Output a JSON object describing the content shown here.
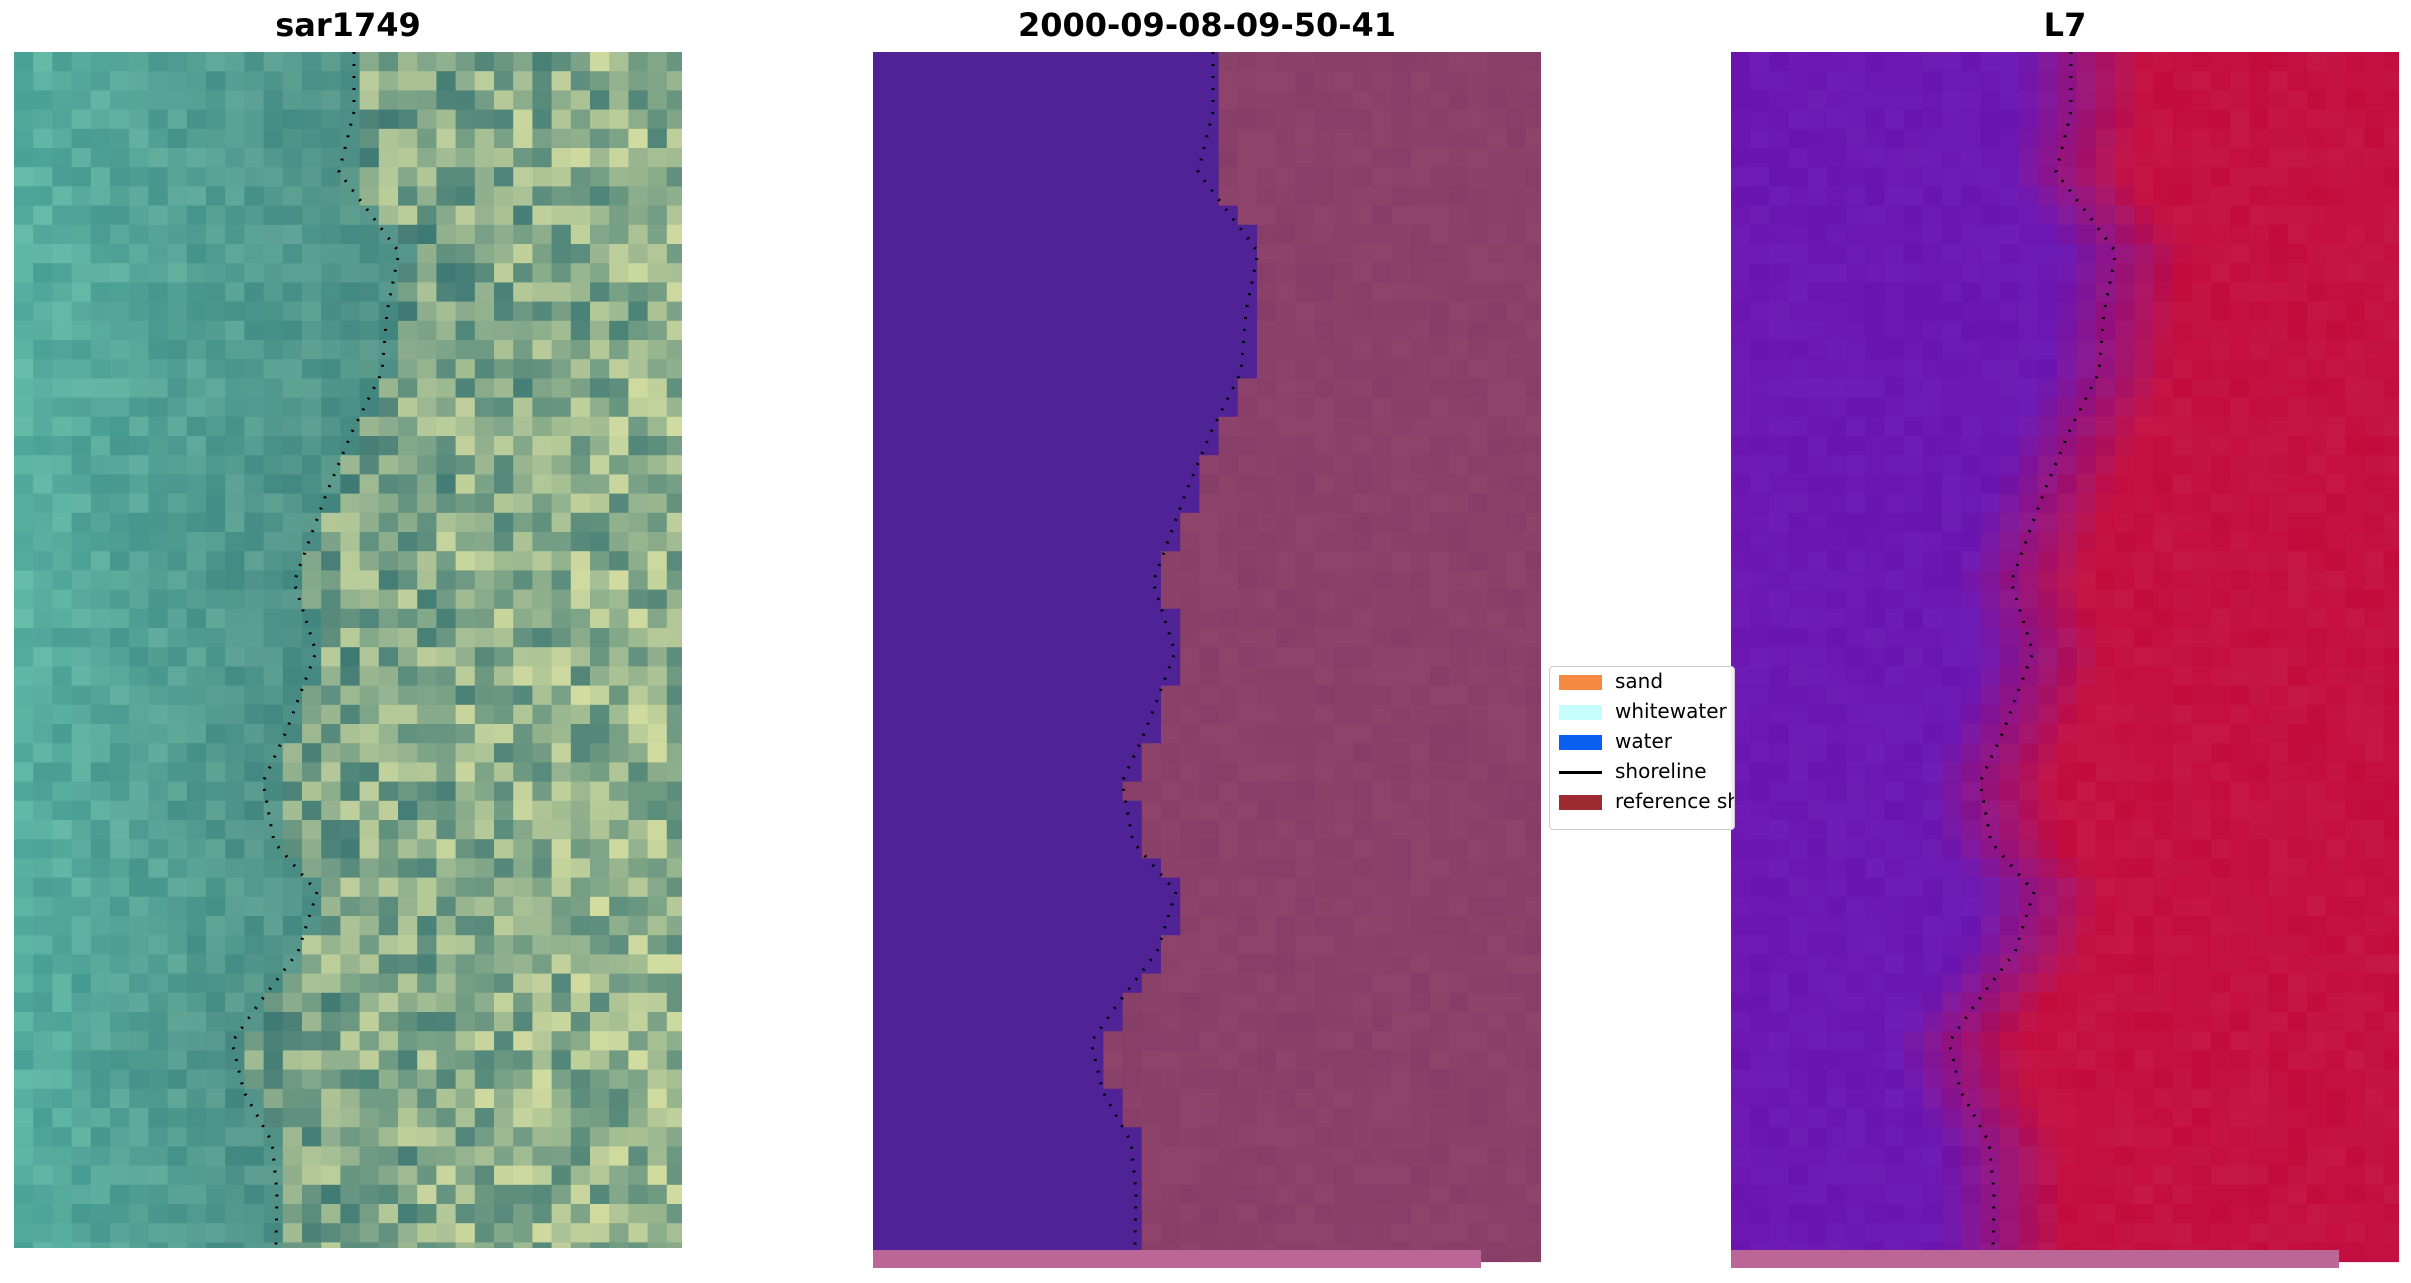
{
  "panels": [
    {
      "title": "sar1749",
      "type": "true-color"
    },
    {
      "title": "2000-09-08-09-50-41",
      "type": "classified"
    },
    {
      "title": "L7",
      "type": "index"
    }
  ],
  "legend": {
    "items": [
      {
        "label": "sand",
        "color": "#f58a40",
        "kind": "patch"
      },
      {
        "label": "whitewater",
        "color": "#c5fcfc",
        "kind": "patch"
      },
      {
        "label": "water",
        "color": "#0a5ff0",
        "kind": "patch"
      },
      {
        "label": "shoreline",
        "color": "#000000",
        "kind": "line"
      },
      {
        "label": "reference shoreline",
        "color": "#9e2b2f",
        "kind": "patch"
      }
    ]
  },
  "colors": {
    "water_class": "#4f2296",
    "land_tone": "#863d67",
    "mask_bar": "#bb6696",
    "index_water": "#6a14b0",
    "index_land": "#c30b3c",
    "shoreline": "#000000"
  }
}
